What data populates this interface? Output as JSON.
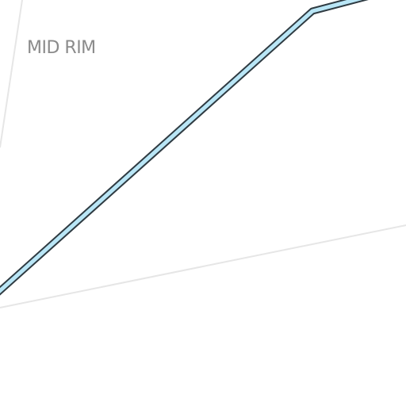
{
  "map": {
    "place_labels": [
      {
        "text": "MID RIM"
      }
    ],
    "colors": {
      "background": "#ffffff",
      "boundary_line": "#e6e6e6",
      "route_fill": "#b9e6f6",
      "route_casing": "#2f3b42",
      "label_text": "#8b8b8b"
    }
  }
}
